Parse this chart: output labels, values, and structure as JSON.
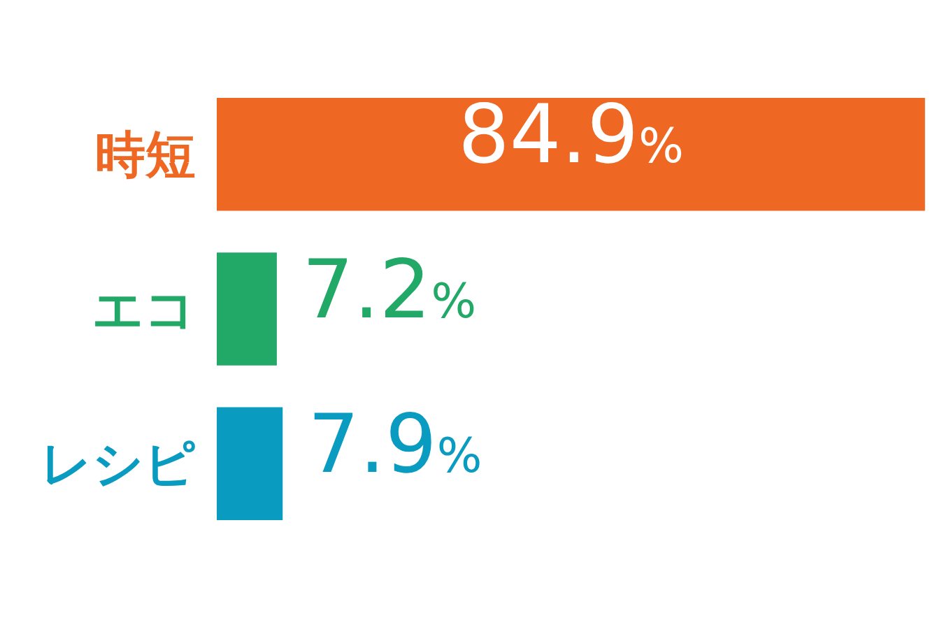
{
  "chart_data": {
    "type": "bar",
    "orientation": "horizontal",
    "categories": [
      "時短",
      "エコ",
      "レシピ"
    ],
    "values": [
      84.9,
      7.2,
      7.9
    ],
    "colors": [
      "#ee6723",
      "#22a867",
      "#0a9cc0"
    ],
    "xlim": [
      0,
      85
    ],
    "value_labels": [
      "84.9%",
      "7.2%",
      "7.9%"
    ]
  }
}
